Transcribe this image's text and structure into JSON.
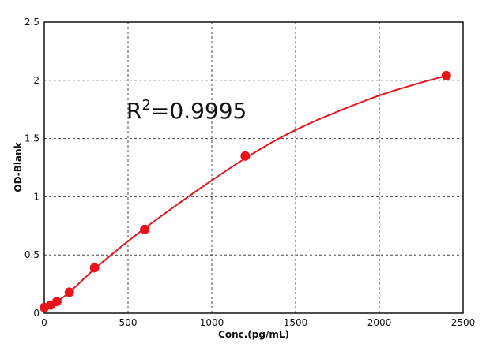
{
  "chart_data": {
    "type": "scatter",
    "title": "",
    "xlabel": "Conc.(pg/mL)",
    "ylabel": "OD-Blank",
    "xlim": [
      0,
      2500
    ],
    "ylim": [
      0,
      2.5
    ],
    "xticks": [
      "0",
      "500",
      "1000",
      "1500",
      "2000",
      "2500"
    ],
    "yticks": [
      "0",
      "0.5",
      "1",
      "1.5",
      "2",
      "2.5"
    ],
    "grid": true,
    "annotation": {
      "base": "R",
      "superscript": "2",
      "value": "=0.9995"
    },
    "series": [
      {
        "x": [
          0,
          38,
          75,
          150,
          300,
          600,
          1200,
          2400
        ],
        "y": [
          0.05,
          0.07,
          0.1,
          0.18,
          0.39,
          0.72,
          1.35,
          2.04
        ],
        "color": "#e8141b"
      }
    ],
    "fit": {
      "type": "curve",
      "x": [
        0,
        75,
        150,
        300,
        450,
        600,
        800,
        1000,
        1200,
        1400,
        1600,
        1800,
        2000,
        2200,
        2400
      ],
      "y": [
        0.05,
        0.1,
        0.18,
        0.38,
        0.56,
        0.73,
        0.94,
        1.14,
        1.33,
        1.5,
        1.64,
        1.76,
        1.87,
        1.96,
        2.04
      ],
      "color": "#e8141b"
    }
  }
}
